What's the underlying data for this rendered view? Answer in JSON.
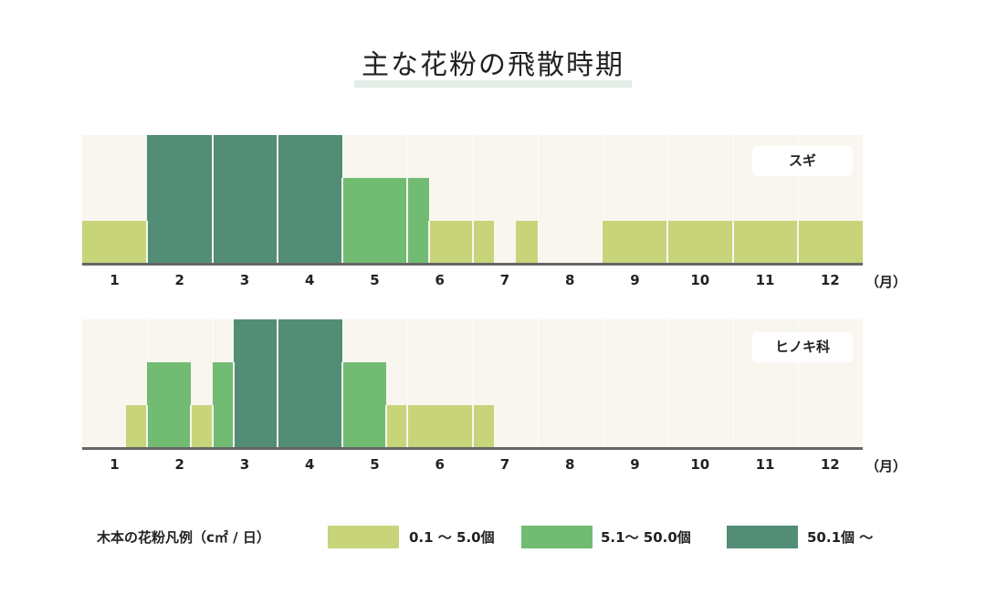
{
  "title": "主な花粉の飛散時期",
  "colors": {
    "low": "#c7d47a",
    "mid": "#72bb73",
    "high": "#538d75",
    "plot_bg": "#f8f6ef",
    "axis": "#666666"
  },
  "months": [
    "1",
    "2",
    "3",
    "4",
    "5",
    "6",
    "7",
    "8",
    "9",
    "10",
    "11",
    "12"
  ],
  "unit": "（月）",
  "charts": [
    {
      "name": "スギ",
      "badge": "スギ"
    },
    {
      "name": "ヒノキ科",
      "badge": "ヒノキ科"
    }
  ],
  "legend": {
    "title": "木本の花粉凡例（c㎡ / 日）",
    "items": [
      {
        "label": "0.1 〜 5.0個",
        "color": "#c7d47a"
      },
      {
        "label": "5.1〜 50.0個",
        "color": "#72bb73"
      },
      {
        "label": "50.1個 〜",
        "color": "#538d75"
      }
    ]
  },
  "chart_data": [
    {
      "type": "bar",
      "title": "スギ",
      "xlabel": "（月）",
      "ylabel": "",
      "categories": [
        "1",
        "2",
        "3",
        "4",
        "5",
        "6",
        "7",
        "8",
        "9",
        "10",
        "11",
        "12"
      ],
      "levels": {
        "1": "0.1〜5.0個",
        "2": "5.1〜50.0個",
        "3": "50.1個〜"
      },
      "segments": [
        {
          "start": 1.0,
          "end": 2.0,
          "level": 1
        },
        {
          "start": 2.0,
          "end": 5.0,
          "level": 3
        },
        {
          "start": 5.0,
          "end": 6.33,
          "level": 2
        },
        {
          "start": 6.33,
          "end": 7.33,
          "level": 1
        },
        {
          "start": 7.67,
          "end": 8.0,
          "level": 1
        },
        {
          "start": 9.0,
          "end": 13.0,
          "level": 1
        }
      ],
      "grid": true
    },
    {
      "type": "bar",
      "title": "ヒノキ科",
      "xlabel": "（月）",
      "ylabel": "",
      "categories": [
        "1",
        "2",
        "3",
        "4",
        "5",
        "6",
        "7",
        "8",
        "9",
        "10",
        "11",
        "12"
      ],
      "levels": {
        "1": "0.1〜5.0個",
        "2": "5.1〜50.0個",
        "3": "50.1個〜"
      },
      "segments": [
        {
          "start": 1.67,
          "end": 2.0,
          "level": 1
        },
        {
          "start": 2.0,
          "end": 2.67,
          "level": 2
        },
        {
          "start": 2.67,
          "end": 3.0,
          "level": 1
        },
        {
          "start": 3.0,
          "end": 3.33,
          "level": 2
        },
        {
          "start": 3.33,
          "end": 5.0,
          "level": 3
        },
        {
          "start": 5.0,
          "end": 5.67,
          "level": 2
        },
        {
          "start": 5.67,
          "end": 7.33,
          "level": 1
        }
      ],
      "grid": true
    }
  ]
}
